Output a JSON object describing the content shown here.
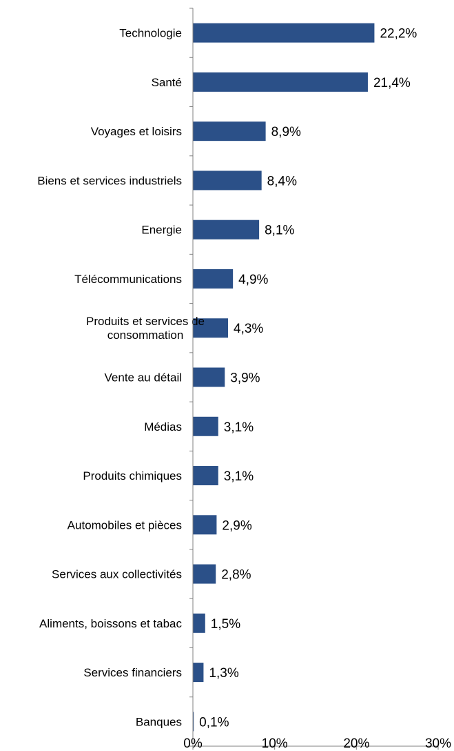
{
  "chart_data": {
    "type": "bar",
    "orientation": "horizontal",
    "categories": [
      "Technologie",
      "Santé",
      "Voyages et loisirs",
      "Biens et services industriels",
      "Energie",
      "Télécommunications",
      "Produits et services de consommation",
      "Vente au détail",
      "Médias",
      "Produits chimiques",
      "Automobiles et pièces",
      "Services aux collectivités",
      "Aliments, boissons et tabac",
      "Services financiers",
      "Banques"
    ],
    "category_label_lines": [
      [
        "Technologie"
      ],
      [
        "Santé"
      ],
      [
        "Voyages et loisirs"
      ],
      [
        "Biens et services industriels"
      ],
      [
        "Energie"
      ],
      [
        "Télécommunications"
      ],
      [
        "Produits et services de",
        "consommation"
      ],
      [
        "Vente au détail"
      ],
      [
        "Médias"
      ],
      [
        "Produits chimiques"
      ],
      [
        "Automobiles et pièces"
      ],
      [
        "Services aux collectivités"
      ],
      [
        "Aliments, boissons et tabac"
      ],
      [
        "Services financiers"
      ],
      [
        "Banques"
      ]
    ],
    "values": [
      22.2,
      21.4,
      8.9,
      8.4,
      8.1,
      4.9,
      4.3,
      3.9,
      3.1,
      3.1,
      2.9,
      2.8,
      1.5,
      1.3,
      0.1
    ],
    "data_labels": [
      "22,2%",
      "21,4%",
      "8,9%",
      "8,4%",
      "8,1%",
      "4,9%",
      "4,3%",
      "3,9%",
      "3,1%",
      "3,1%",
      "2,9%",
      "2,8%",
      "1,5%",
      "1,3%",
      "0,1%"
    ],
    "xlim": [
      0,
      30
    ],
    "x_ticks": [
      0,
      10,
      20,
      30
    ],
    "x_tick_labels": [
      "0%",
      "10%",
      "20%",
      "30%"
    ],
    "title": "",
    "xlabel": "",
    "ylabel": "",
    "grid": false,
    "legend": "none",
    "bar_color": "#2B5088"
  }
}
